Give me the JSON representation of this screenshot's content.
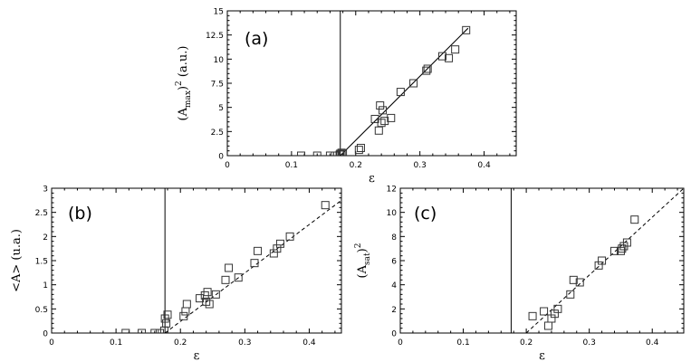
{
  "chart_data": [
    {
      "id": "a",
      "type": "scatter",
      "panel_label": "(a)",
      "xlabel": "ε",
      "ylabel": "(A_max)² (a.u.)",
      "ylabel_parts": {
        "base": "(A",
        "sub": "max",
        "mid": ")",
        "sup": "2",
        "unit": " (a.u.)"
      },
      "xlim": [
        0,
        0.45
      ],
      "ylim": [
        0,
        15
      ],
      "xticks": [
        0,
        0.1,
        0.2,
        0.3,
        0.4
      ],
      "xtick_labels": [
        "0",
        "0.1",
        "0.2",
        "0.3",
        "0.4"
      ],
      "yticks": [
        0,
        2.5,
        5,
        7.5,
        10,
        12.5,
        15
      ],
      "ytick_labels": [
        "0",
        "2.5",
        "5",
        "7.5",
        "10",
        "12.5",
        "15"
      ],
      "vertical_line_x": 0.176,
      "fit_line": {
        "style": "solid",
        "x": [
          0.176,
          0.375
        ],
        "y": [
          0,
          13.2
        ]
      },
      "points": {
        "x": [
          0.115,
          0.14,
          0.16,
          0.168,
          0.175,
          0.176,
          0.178,
          0.18,
          0.205,
          0.208,
          0.23,
          0.236,
          0.238,
          0.24,
          0.242,
          0.245,
          0.255,
          0.27,
          0.29,
          0.31,
          0.312,
          0.335,
          0.345,
          0.355,
          0.372
        ],
        "y": [
          0,
          0,
          0,
          0,
          0.1,
          0.2,
          0.3,
          0.2,
          0.6,
          0.8,
          3.8,
          2.6,
          5.2,
          3.4,
          4.7,
          3.6,
          3.9,
          6.6,
          7.5,
          8.8,
          9.0,
          10.3,
          10.1,
          11.0,
          13.0
        ]
      }
    },
    {
      "id": "b",
      "type": "scatter",
      "panel_label": "(b)",
      "xlabel": "ε",
      "ylabel": "<A> (u.a.)",
      "xlim": [
        0,
        0.45
      ],
      "ylim": [
        0,
        3
      ],
      "xticks": [
        0,
        0.1,
        0.2,
        0.3,
        0.4
      ],
      "xtick_labels": [
        "0",
        "0.1",
        "0.2",
        "0.3",
        "0.4"
      ],
      "yticks": [
        0,
        0.5,
        1,
        1.5,
        2,
        2.5,
        3
      ],
      "ytick_labels": [
        "0",
        "0.5",
        "1",
        "1.5",
        "2",
        "2.5",
        "3"
      ],
      "vertical_line_x": 0.176,
      "fit_line": {
        "style": "dashed",
        "x": [
          0.176,
          0.45
        ],
        "y": [
          0,
          2.75
        ]
      },
      "points": {
        "x": [
          0.115,
          0.14,
          0.16,
          0.168,
          0.175,
          0.176,
          0.178,
          0.18,
          0.205,
          0.208,
          0.21,
          0.23,
          0.238,
          0.24,
          0.242,
          0.245,
          0.255,
          0.27,
          0.275,
          0.29,
          0.315,
          0.32,
          0.345,
          0.35,
          0.355,
          0.37,
          0.425
        ],
        "y": [
          0,
          0,
          0,
          0,
          0.05,
          0.3,
          0.2,
          0.38,
          0.35,
          0.45,
          0.6,
          0.72,
          0.78,
          0.65,
          0.85,
          0.6,
          0.8,
          1.1,
          1.35,
          1.15,
          1.45,
          1.7,
          1.65,
          1.75,
          1.85,
          2.0,
          2.65
        ]
      }
    },
    {
      "id": "c",
      "type": "scatter",
      "panel_label": "(c)",
      "xlabel": "ε",
      "ylabel": "(A_sat)²",
      "ylabel_parts": {
        "base": "(A",
        "sub": "sat",
        "mid": ")",
        "sup": "2",
        "unit": ""
      },
      "xlim": [
        0,
        0.45
      ],
      "ylim": [
        0,
        12
      ],
      "xticks": [
        0,
        0.1,
        0.2,
        0.3,
        0.4
      ],
      "xtick_labels": [
        "0",
        "0.1",
        "0.2",
        "0.3",
        "0.4"
      ],
      "yticks": [
        0,
        2,
        4,
        6,
        8,
        10,
        12
      ],
      "ytick_labels": [
        "0",
        "2",
        "4",
        "6",
        "8",
        "10",
        "12"
      ],
      "vertical_line_x": 0.176,
      "fit_line": {
        "style": "dashed",
        "x": [
          0.2,
          0.45
        ],
        "y": [
          0,
          12
        ]
      },
      "points": {
        "x": [
          0.21,
          0.228,
          0.235,
          0.24,
          0.245,
          0.25,
          0.27,
          0.275,
          0.285,
          0.315,
          0.32,
          0.34,
          0.35,
          0.352,
          0.355,
          0.36,
          0.372
        ],
        "y": [
          1.4,
          1.8,
          0.6,
          1.2,
          1.6,
          2.0,
          3.2,
          4.4,
          4.2,
          5.6,
          6.0,
          6.8,
          6.8,
          7.0,
          7.2,
          7.5,
          9.4
        ]
      }
    }
  ]
}
